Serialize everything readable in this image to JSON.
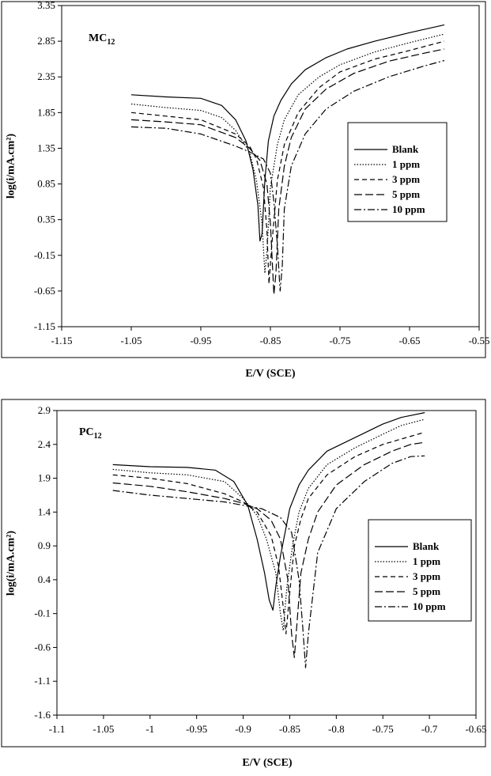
{
  "chart_data": [
    {
      "type": "line",
      "inset_label": "MC",
      "inset_sub": "12",
      "xlabel": "E/V  (SCE)",
      "ylabel": "log(i/mA.cm²)",
      "xlim": [
        -1.15,
        -0.55
      ],
      "ylim": [
        -1.15,
        3.35
      ],
      "xticks": [
        "-1.15",
        "-1.05",
        "-0.95",
        "-0.85",
        "-0.75",
        "-0.65",
        "-0.55"
      ],
      "yticks": [
        "-1.15",
        "-0.65",
        "-0.15",
        "0.35",
        "0.85",
        "1.35",
        "1.85",
        "2.35",
        "2.85",
        "3.35"
      ],
      "legend_position": "right",
      "grid": false,
      "series": [
        {
          "name": "Blank",
          "dash": "solid",
          "x": [
            -1.05,
            -1.0,
            -0.95,
            -0.92,
            -0.9,
            -0.885,
            -0.875,
            -0.868,
            -0.865,
            -0.862,
            -0.858,
            -0.853,
            -0.845,
            -0.835,
            -0.82,
            -0.8,
            -0.77,
            -0.74,
            -0.7,
            -0.65,
            -0.6
          ],
          "y": [
            2.1,
            2.07,
            2.05,
            1.95,
            1.75,
            1.45,
            1.05,
            0.55,
            0.05,
            0.15,
            0.9,
            1.45,
            1.8,
            2.02,
            2.25,
            2.45,
            2.62,
            2.74,
            2.85,
            2.97,
            3.08
          ]
        },
        {
          "name": "1 ppm",
          "dash": "dot",
          "x": [
            -1.05,
            -1.0,
            -0.95,
            -0.92,
            -0.9,
            -0.88,
            -0.87,
            -0.862,
            -0.858,
            -0.855,
            -0.85,
            -0.84,
            -0.83,
            -0.81,
            -0.78,
            -0.75,
            -0.7,
            -0.65,
            -0.6
          ],
          "y": [
            1.97,
            1.92,
            1.88,
            1.78,
            1.6,
            1.3,
            0.9,
            0.3,
            -0.4,
            -0.1,
            0.8,
            1.4,
            1.75,
            2.1,
            2.35,
            2.52,
            2.7,
            2.83,
            2.95
          ]
        },
        {
          "name": "3 ppm",
          "dash": "dash",
          "x": [
            -1.05,
            -1.0,
            -0.95,
            -0.9,
            -0.88,
            -0.87,
            -0.86,
            -0.855,
            -0.852,
            -0.848,
            -0.84,
            -0.83,
            -0.81,
            -0.78,
            -0.75,
            -0.7,
            -0.65,
            -0.6
          ],
          "y": [
            1.85,
            1.8,
            1.75,
            1.55,
            1.38,
            1.2,
            0.8,
            0.2,
            -0.55,
            0.0,
            0.9,
            1.4,
            1.85,
            2.2,
            2.42,
            2.6,
            2.72,
            2.85
          ]
        },
        {
          "name": "5 ppm",
          "dash": "longdash",
          "x": [
            -1.05,
            -1.0,
            -0.95,
            -0.9,
            -0.88,
            -0.865,
            -0.855,
            -0.85,
            -0.845,
            -0.842,
            -0.838,
            -0.83,
            -0.82,
            -0.8,
            -0.77,
            -0.73,
            -0.68,
            -0.63,
            -0.6
          ],
          "y": [
            1.75,
            1.72,
            1.68,
            1.5,
            1.35,
            1.18,
            0.85,
            0.3,
            -0.7,
            -0.4,
            0.5,
            1.1,
            1.5,
            1.9,
            2.18,
            2.4,
            2.57,
            2.68,
            2.74
          ]
        },
        {
          "name": "10 ppm",
          "dash": "dashdot",
          "x": [
            -1.05,
            -1.0,
            -0.95,
            -0.9,
            -0.88,
            -0.86,
            -0.85,
            -0.845,
            -0.84,
            -0.836,
            -0.833,
            -0.83,
            -0.82,
            -0.8,
            -0.77,
            -0.73,
            -0.68,
            -0.63,
            -0.6
          ],
          "y": [
            1.65,
            1.63,
            1.55,
            1.38,
            1.3,
            1.2,
            1.0,
            0.6,
            0.0,
            -0.65,
            -0.3,
            0.5,
            1.1,
            1.55,
            1.9,
            2.15,
            2.35,
            2.5,
            2.58
          ]
        }
      ]
    },
    {
      "type": "line",
      "inset_label": "PC",
      "inset_sub": "12",
      "xlabel": "E/V  (SCE)",
      "ylabel": "log(i/mA.cm²)",
      "xlim": [
        -1.1,
        -0.65
      ],
      "ylim": [
        -1.6,
        2.9
      ],
      "xticks": [
        "-1.1",
        "-1.05",
        "-1",
        "-0.95",
        "-0.9",
        "-0.85",
        "-0.8",
        "-0.75",
        "-0.7",
        "-0.65"
      ],
      "yticks": [
        "-1.6",
        "-1.1",
        "-0.6",
        "-0.1",
        "0.4",
        "0.9",
        "1.4",
        "1.9",
        "2.4",
        "2.9"
      ],
      "legend_position": "right",
      "grid": false,
      "series": [
        {
          "name": "Blank",
          "dash": "solid",
          "x": [
            -1.04,
            -1.0,
            -0.96,
            -0.93,
            -0.91,
            -0.895,
            -0.885,
            -0.877,
            -0.872,
            -0.868,
            -0.865,
            -0.86,
            -0.855,
            -0.85,
            -0.84,
            -0.83,
            -0.81,
            -0.78,
            -0.75,
            -0.73,
            -0.705
          ],
          "y": [
            2.1,
            2.07,
            2.06,
            2.02,
            1.85,
            1.5,
            1.0,
            0.5,
            0.1,
            -0.05,
            0.3,
            0.75,
            1.1,
            1.45,
            1.8,
            2.02,
            2.3,
            2.5,
            2.7,
            2.8,
            2.87
          ]
        },
        {
          "name": "1 ppm",
          "dash": "dot",
          "x": [
            -1.04,
            -1.0,
            -0.96,
            -0.92,
            -0.9,
            -0.885,
            -0.875,
            -0.865,
            -0.86,
            -0.857,
            -0.853,
            -0.847,
            -0.84,
            -0.83,
            -0.81,
            -0.78,
            -0.75,
            -0.73,
            -0.705
          ],
          "y": [
            2.03,
            1.98,
            1.95,
            1.85,
            1.6,
            1.35,
            1.0,
            0.5,
            -0.1,
            -0.35,
            0.3,
            0.9,
            1.4,
            1.75,
            2.1,
            2.35,
            2.55,
            2.68,
            2.77
          ]
        },
        {
          "name": "3 ppm",
          "dash": "dash",
          "x": [
            -1.04,
            -1.0,
            -0.96,
            -0.92,
            -0.9,
            -0.885,
            -0.87,
            -0.862,
            -0.857,
            -0.854,
            -0.85,
            -0.845,
            -0.838,
            -0.83,
            -0.81,
            -0.78,
            -0.75,
            -0.72,
            -0.705
          ],
          "y": [
            1.95,
            1.9,
            1.82,
            1.67,
            1.55,
            1.4,
            1.05,
            0.6,
            0.0,
            -0.4,
            0.2,
            0.9,
            1.3,
            1.6,
            1.95,
            2.22,
            2.4,
            2.52,
            2.58
          ]
        },
        {
          "name": "5 ppm",
          "dash": "longdash",
          "x": [
            -1.04,
            -1.0,
            -0.96,
            -0.92,
            -0.9,
            -0.885,
            -0.87,
            -0.86,
            -0.852,
            -0.848,
            -0.845,
            -0.842,
            -0.838,
            -0.83,
            -0.82,
            -0.8,
            -0.77,
            -0.74,
            -0.72,
            -0.705
          ],
          "y": [
            1.83,
            1.78,
            1.7,
            1.6,
            1.53,
            1.45,
            1.28,
            1.0,
            0.4,
            -0.4,
            -0.75,
            -0.2,
            0.5,
            1.0,
            1.4,
            1.8,
            2.1,
            2.3,
            2.4,
            2.43
          ]
        },
        {
          "name": "10 ppm",
          "dash": "dashdot",
          "x": [
            -1.04,
            -1.0,
            -0.96,
            -0.92,
            -0.9,
            -0.88,
            -0.86,
            -0.848,
            -0.84,
            -0.836,
            -0.833,
            -0.83,
            -0.82,
            -0.8,
            -0.77,
            -0.74,
            -0.72,
            -0.705
          ],
          "y": [
            1.72,
            1.65,
            1.6,
            1.55,
            1.5,
            1.45,
            1.32,
            1.1,
            0.4,
            -0.3,
            -0.9,
            -0.4,
            0.8,
            1.45,
            1.85,
            2.12,
            2.22,
            2.23
          ]
        }
      ]
    }
  ]
}
